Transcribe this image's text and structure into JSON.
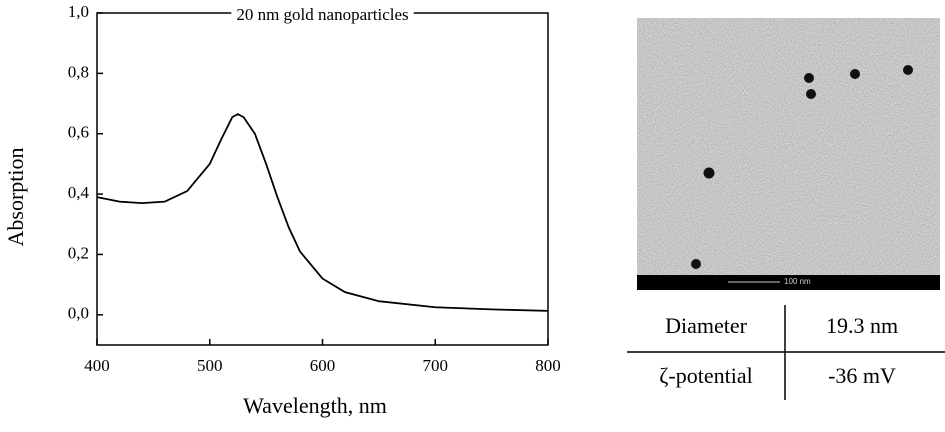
{
  "chart_data": {
    "type": "line",
    "title": "20 nm gold nanoparticles",
    "x_label": "Wavelength, nm",
    "y_label": "Absorption",
    "x": [
      400,
      420,
      440,
      460,
      480,
      500,
      510,
      520,
      525,
      530,
      540,
      550,
      560,
      570,
      580,
      600,
      620,
      650,
      700,
      750,
      800
    ],
    "series": [
      {
        "color": "#000000",
        "values": [
          0.39,
          0.375,
          0.37,
          0.375,
          0.41,
          0.5,
          0.58,
          0.655,
          0.665,
          0.655,
          0.6,
          0.5,
          0.39,
          0.29,
          0.21,
          0.12,
          0.075,
          0.045,
          0.025,
          0.018,
          0.013
        ]
      }
    ],
    "xlim": [
      400,
      800
    ],
    "xticks": [
      400,
      500,
      600,
      700,
      800
    ],
    "ylim": [
      -0.1,
      1.0
    ],
    "yticks": [
      {
        "value": 0,
        "label": "0,0"
      },
      {
        "value": 0.2,
        "label": "0,2"
      },
      {
        "value": 0.4,
        "label": "0,4"
      },
      {
        "value": 0.6,
        "label": "0,6"
      },
      {
        "value": 0.8,
        "label": "0,8"
      },
      {
        "value": 1.0,
        "label": "1,0"
      }
    ]
  },
  "image": {
    "scale_bar": "100 nm"
  },
  "table": {
    "rows": [
      [
        "Diameter",
        "19.3 nm"
      ],
      [
        "ζ-potential",
        "-36 mV"
      ]
    ]
  }
}
